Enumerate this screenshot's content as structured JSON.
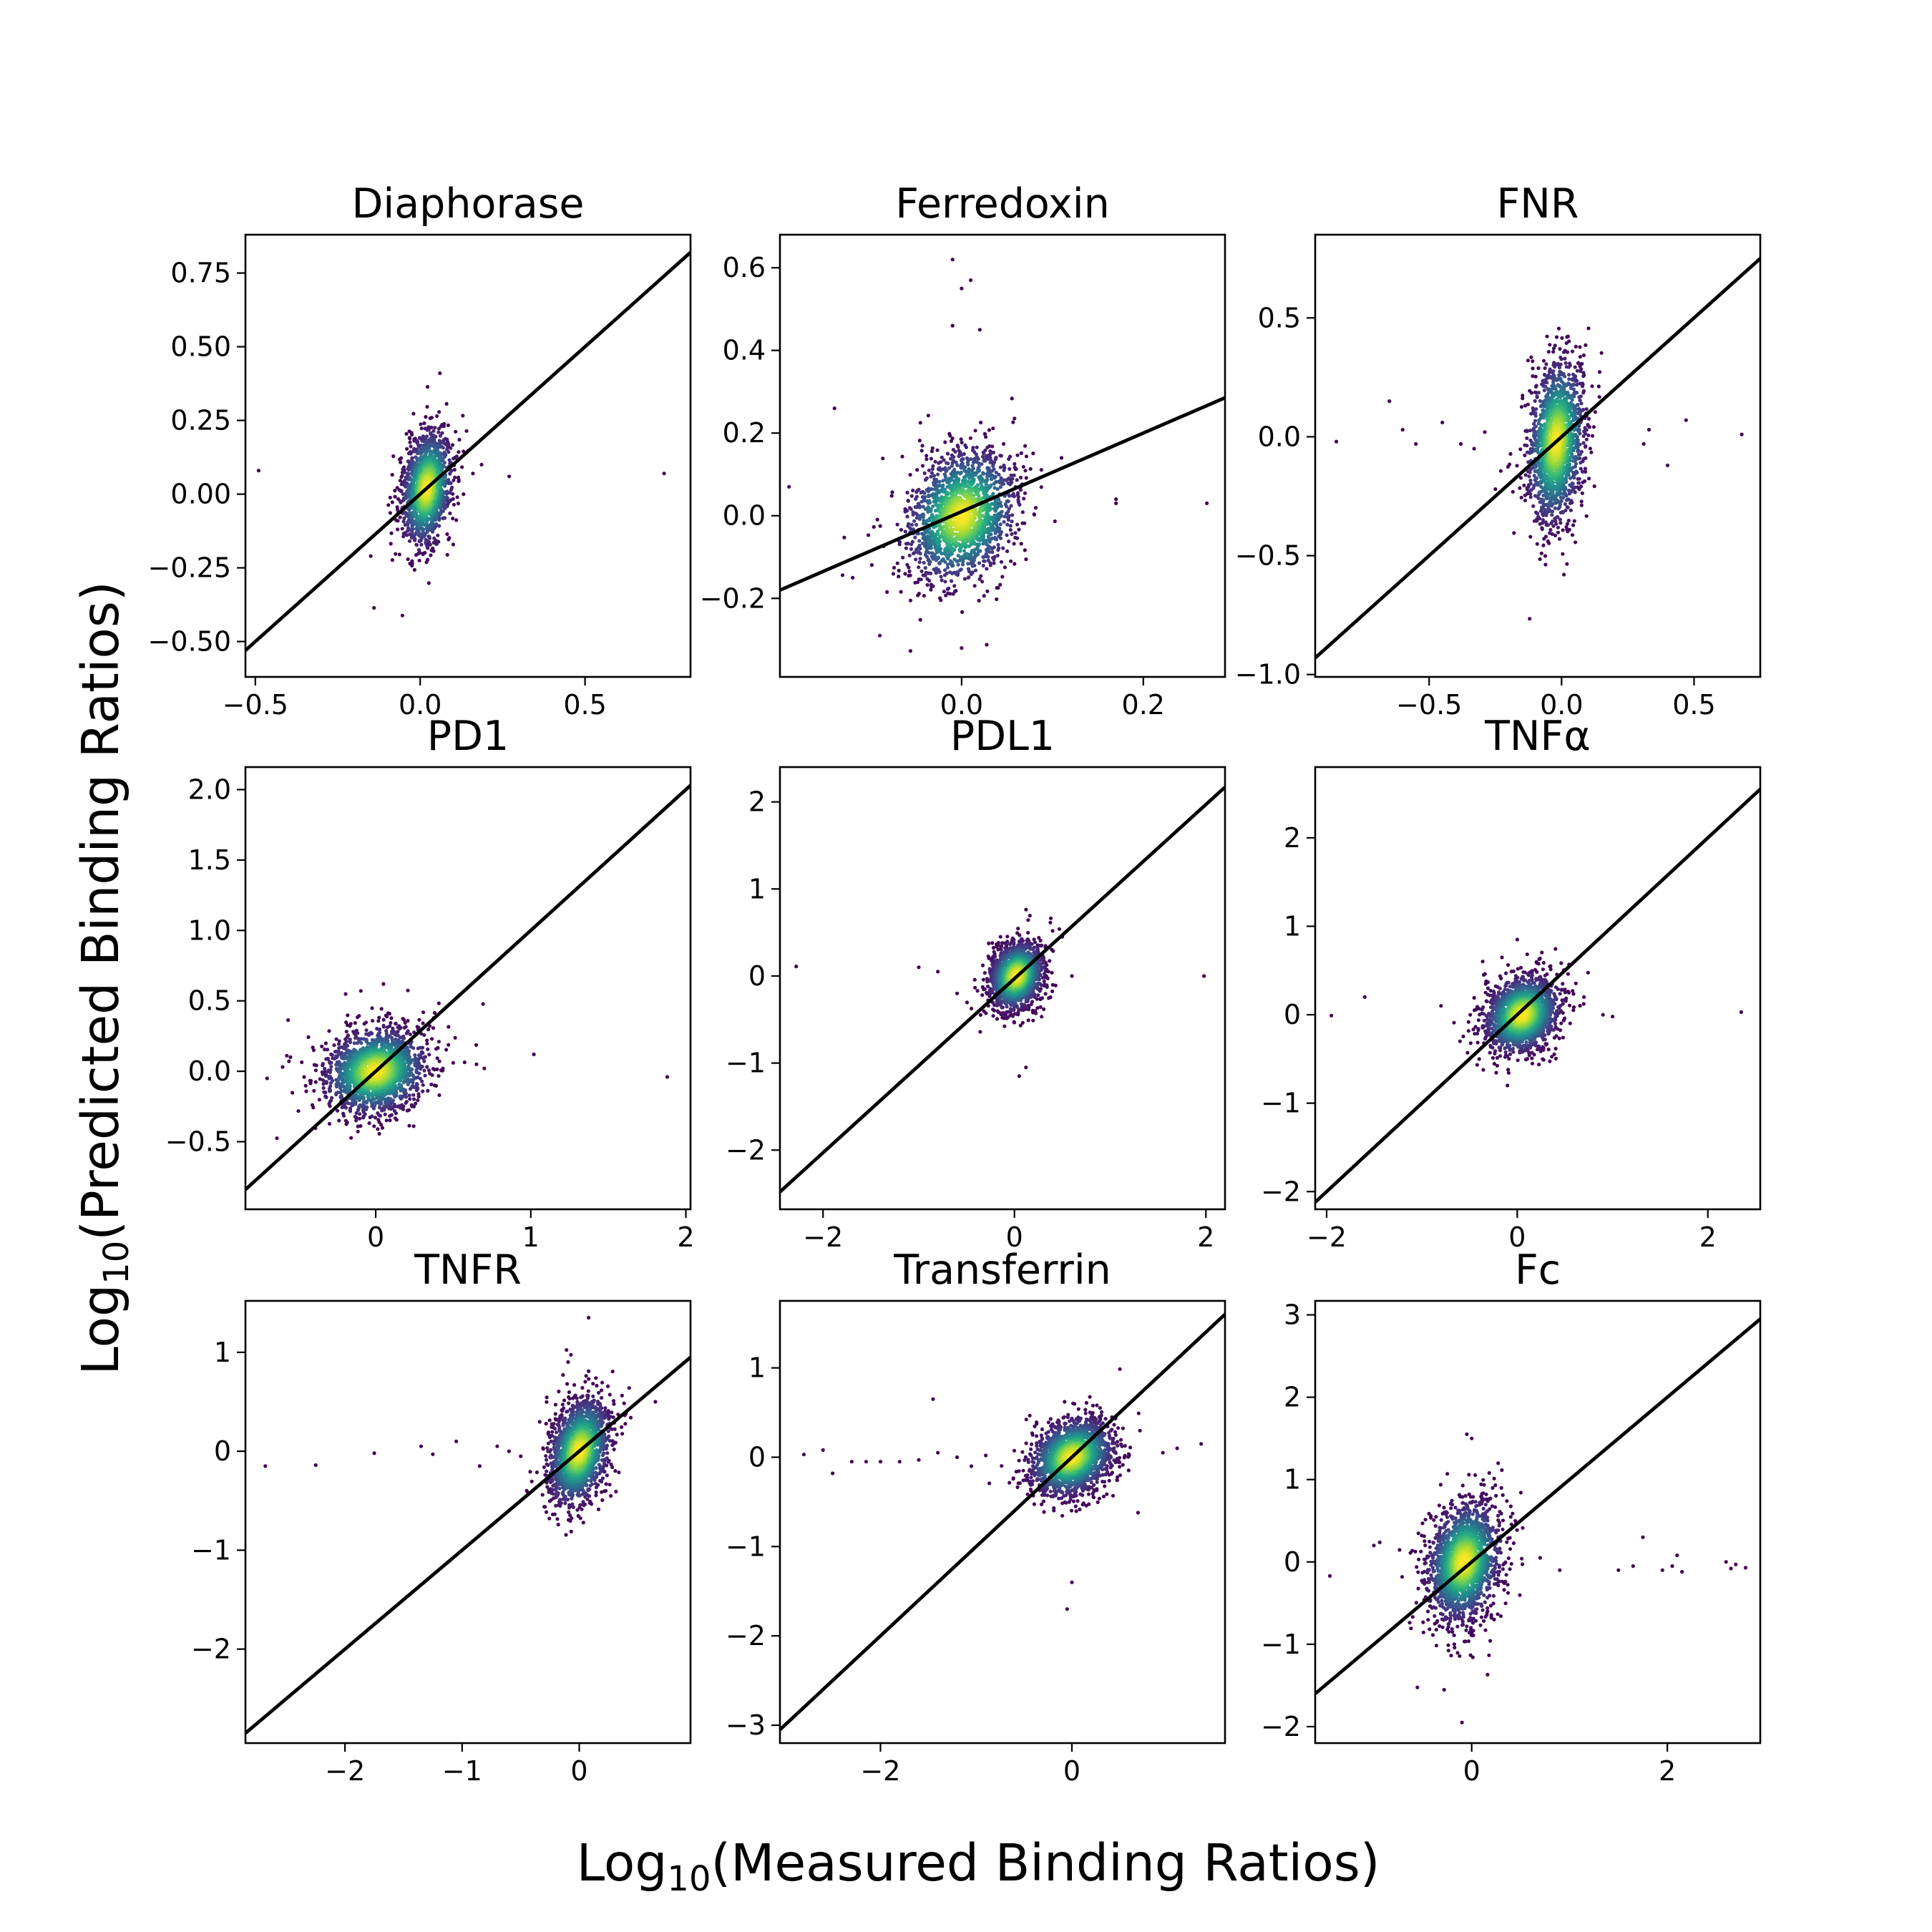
{
  "figure": {
    "xlabel_main": "Log",
    "xlabel_sub": "10",
    "xlabel_rest": "(Measured Binding Ratios)",
    "ylabel_main": "Log",
    "ylabel_sub": "10",
    "ylabel_rest": "(Predicted Binding Ratios)"
  },
  "chart_data": [
    {
      "type": "scatter",
      "title": "Diaphorase",
      "xlim": [
        -0.53,
        0.82
      ],
      "ylim": [
        -0.62,
        0.88
      ],
      "xticks": [
        -0.5,
        0,
        0.5
      ],
      "xtick_labels": [
        "−0.5",
        "0.0",
        "0.5"
      ],
      "yticks": [
        -0.5,
        -0.25,
        0,
        0.25,
        0.5,
        0.75
      ],
      "ytick_labels": [
        "−0.50",
        "−0.25",
        "0.00",
        "0.25",
        "0.50",
        "0.75"
      ],
      "fit_line": {
        "slope": 1.0,
        "intercept": 0.0
      },
      "cloud": {
        "cx": 0.02,
        "cy": 0.02,
        "sx": 0.035,
        "sy": 0.09,
        "rho": 0.25,
        "n": 1500
      },
      "outliers": [
        [
          -0.49,
          0.08
        ],
        [
          0.27,
          0.06
        ],
        [
          0.74,
          0.07
        ],
        [
          0.16,
          0.07
        ],
        [
          -0.15,
          -0.21
        ],
        [
          0.06,
          0.41
        ]
      ]
    },
    {
      "type": "scatter",
      "title": "Ferredoxin",
      "xlim": [
        -0.2,
        0.29
      ],
      "ylim": [
        -0.39,
        0.68
      ],
      "xticks": [
        0,
        0.2
      ],
      "xtick_labels": [
        "0.0",
        "0.2"
      ],
      "yticks": [
        -0.2,
        0,
        0.2,
        0.4,
        0.6
      ],
      "ytick_labels": [
        "−0.2",
        "0.0",
        "0.2",
        "0.4",
        "0.6"
      ],
      "fit_line": {
        "slope": 0.95,
        "intercept": 0.01
      },
      "cloud": {
        "cx": 0.0,
        "cy": 0.0,
        "sx": 0.028,
        "sy": 0.075,
        "rho": 0.2,
        "n": 1800
      },
      "outliers": [
        [
          -0.14,
          0.26
        ],
        [
          -0.19,
          0.07
        ],
        [
          0.17,
          0.03
        ],
        [
          0.17,
          0.04
        ],
        [
          0.27,
          0.03
        ],
        [
          -0.01,
          0.62
        ],
        [
          0.0,
          0.55
        ],
        [
          0.01,
          0.57
        ],
        [
          -0.01,
          0.46
        ],
        [
          0.02,
          0.45
        ],
        [
          -0.09,
          -0.29
        ],
        [
          0.0,
          -0.32
        ],
        [
          0.11,
          0.14
        ],
        [
          -0.12,
          -0.15
        ]
      ]
    },
    {
      "type": "scatter",
      "title": "FNR",
      "xlim": [
        -0.93,
        0.75
      ],
      "ylim": [
        -1.01,
        0.85
      ],
      "xticks": [
        -0.5,
        0,
        0.5
      ],
      "xtick_labels": [
        "−0.5",
        "0.0",
        "0.5"
      ],
      "yticks": [
        -1.0,
        -0.5,
        0,
        0.5
      ],
      "ytick_labels": [
        "−1.0",
        "−0.5",
        "0.0",
        "0.5"
      ],
      "fit_line": {
        "slope": 1.0,
        "intercept": 0.0
      },
      "cloud": {
        "cx": -0.02,
        "cy": -0.02,
        "sx": 0.05,
        "sy": 0.16,
        "rho": 0.2,
        "n": 1700
      },
      "outliers": [
        [
          -0.85,
          -0.02
        ],
        [
          -0.65,
          0.15
        ],
        [
          -0.6,
          0.03
        ],
        [
          -0.55,
          -0.03
        ],
        [
          -0.45,
          0.06
        ],
        [
          -0.38,
          -0.03
        ],
        [
          -0.33,
          -0.05
        ],
        [
          0.33,
          0.03
        ],
        [
          0.4,
          -0.12
        ],
        [
          0.47,
          0.07
        ],
        [
          0.68,
          0.01
        ],
        [
          0.31,
          -0.03
        ],
        [
          -0.29,
          0.02
        ],
        [
          -0.25,
          -0.22
        ]
      ]
    },
    {
      "type": "scatter",
      "title": "PD1",
      "xlim": [
        -0.84,
        2.03
      ],
      "ylim": [
        -0.98,
        2.16
      ],
      "xticks": [
        0,
        1,
        2
      ],
      "xtick_labels": [
        "0",
        "1",
        "2"
      ],
      "yticks": [
        -0.5,
        0,
        0.5,
        1.0,
        1.5,
        2.0
      ],
      "ytick_labels": [
        "−0.5",
        "0.0",
        "0.5",
        "1.0",
        "1.5",
        "2.0"
      ],
      "fit_line": {
        "slope": 1.0,
        "intercept": 0.0
      },
      "cloud": {
        "cx": 0.0,
        "cy": 0.0,
        "sx": 0.15,
        "sy": 0.14,
        "rho": 0.15,
        "n": 2000
      },
      "outliers": [
        [
          -0.7,
          -0.05
        ],
        [
          -0.6,
          0.03
        ],
        [
          -0.55,
          0.1
        ],
        [
          0.65,
          0.05
        ],
        [
          0.7,
          0.02
        ],
        [
          1.02,
          0.12
        ],
        [
          1.88,
          -0.04
        ],
        [
          -0.4,
          0.15
        ],
        [
          0.5,
          0.06
        ],
        [
          0.05,
          0.62
        ]
      ]
    },
    {
      "type": "scatter",
      "title": "PDL1",
      "xlim": [
        -2.45,
        2.2
      ],
      "ylim": [
        -2.68,
        2.4
      ],
      "xticks": [
        -2,
        0,
        2
      ],
      "xtick_labels": [
        "−2",
        "0",
        "2"
      ],
      "yticks": [
        -2,
        -1,
        0,
        1,
        2
      ],
      "ytick_labels": [
        "−2",
        "−1",
        "0",
        "1",
        "2"
      ],
      "fit_line": {
        "slope": 1.0,
        "intercept": -0.03
      },
      "cloud": {
        "cx": 0.02,
        "cy": 0.0,
        "sx": 0.13,
        "sy": 0.18,
        "rho": 0.2,
        "n": 1700
      },
      "outliers": [
        [
          -2.28,
          0.11
        ],
        [
          1.98,
          0.0
        ],
        [
          -1.0,
          0.1
        ],
        [
          -0.8,
          0.05
        ],
        [
          0.6,
          0.0
        ],
        [
          0.05,
          -1.15
        ],
        [
          0.12,
          -1.05
        ],
        [
          -0.6,
          -0.2
        ],
        [
          0.5,
          0.45
        ]
      ]
    },
    {
      "type": "scatter",
      "title": "TNFα",
      "xlim": [
        -2.12,
        2.55
      ],
      "ylim": [
        -2.2,
        2.8
      ],
      "xticks": [
        -2,
        0,
        2
      ],
      "xtick_labels": [
        "−2",
        "0",
        "2"
      ],
      "yticks": [
        -2,
        -1,
        0,
        1,
        2
      ],
      "ytick_labels": [
        "−2",
        "−1",
        "0",
        "1",
        "2"
      ],
      "fit_line": {
        "slope": 1.0,
        "intercept": 0.0
      },
      "cloud": {
        "cx": 0.05,
        "cy": 0.0,
        "sx": 0.18,
        "sy": 0.2,
        "rho": 0.2,
        "n": 1900
      },
      "outliers": [
        [
          -1.95,
          -0.01
        ],
        [
          -1.6,
          0.2
        ],
        [
          -0.8,
          0.1
        ],
        [
          0.9,
          0.0
        ],
        [
          1.0,
          -0.02
        ],
        [
          2.35,
          0.03
        ],
        [
          0.7,
          0.2
        ],
        [
          -0.6,
          -0.3
        ],
        [
          0.0,
          0.85
        ]
      ]
    },
    {
      "type": "scatter",
      "title": "TNFR",
      "xlim": [
        -2.85,
        0.95
      ],
      "ylim": [
        -2.95,
        1.52
      ],
      "xticks": [
        -2,
        -1,
        0
      ],
      "xtick_labels": [
        "−2",
        "−1",
        "0"
      ],
      "yticks": [
        -2,
        -1,
        0,
        1
      ],
      "ytick_labels": [
        "−2",
        "−1",
        "0",
        "1"
      ],
      "fit_line": {
        "slope": 1.0,
        "intercept": 0.0
      },
      "cloud": {
        "cx": 0.0,
        "cy": 0.0,
        "sx": 0.12,
        "sy": 0.25,
        "rho": 0.3,
        "n": 1900
      },
      "outliers": [
        [
          -2.68,
          -0.15
        ],
        [
          -2.25,
          -0.14
        ],
        [
          -1.75,
          -0.02
        ],
        [
          -1.35,
          0.05
        ],
        [
          -1.25,
          -0.03
        ],
        [
          -1.05,
          0.1
        ],
        [
          -0.85,
          -0.15
        ],
        [
          -0.7,
          0.05
        ],
        [
          -0.6,
          0.0
        ],
        [
          0.65,
          0.5
        ],
        [
          0.08,
          1.35
        ],
        [
          -0.5,
          -0.05
        ]
      ]
    },
    {
      "type": "scatter",
      "title": "Transferrin",
      "xlim": [
        -3.05,
        1.6
      ],
      "ylim": [
        -3.2,
        1.75
      ],
      "xticks": [
        -2,
        0
      ],
      "xtick_labels": [
        "−2",
        "0"
      ],
      "yticks": [
        -3,
        -2,
        -1,
        0,
        1
      ],
      "ytick_labels": [
        "−3",
        "−2",
        "−1",
        "0",
        "1"
      ],
      "fit_line": {
        "slope": 1.0,
        "intercept": 0.0
      },
      "cloud": {
        "cx": 0.0,
        "cy": 0.0,
        "sx": 0.2,
        "sy": 0.2,
        "rho": 0.25,
        "n": 2000
      },
      "outliers": [
        [
          -2.8,
          0.03
        ],
        [
          -2.6,
          0.08
        ],
        [
          -2.5,
          -0.18
        ],
        [
          -2.3,
          -0.05
        ],
        [
          -2.15,
          -0.05
        ],
        [
          -2.0,
          -0.05
        ],
        [
          -1.8,
          -0.05
        ],
        [
          -1.6,
          -0.03
        ],
        [
          -1.4,
          0.05
        ],
        [
          -1.2,
          0.0
        ],
        [
          -1.05,
          -0.1
        ],
        [
          -0.9,
          0.02
        ],
        [
          1.35,
          0.15
        ],
        [
          1.1,
          0.1
        ],
        [
          -1.45,
          0.65
        ],
        [
          -0.05,
          -1.7
        ],
        [
          0.0,
          -1.4
        ],
        [
          0.95,
          0.05
        ]
      ]
    },
    {
      "type": "scatter",
      "title": "Fc",
      "xlim": [
        -1.6,
        2.95
      ],
      "ylim": [
        -2.2,
        3.17
      ],
      "xticks": [
        0,
        2
      ],
      "xtick_labels": [
        "0",
        "2"
      ],
      "yticks": [
        -2,
        -1,
        0,
        1,
        2,
        3
      ],
      "ytick_labels": [
        "−2",
        "−1",
        "0",
        "1",
        "2",
        "3"
      ],
      "fit_line": {
        "slope": 1.0,
        "intercept": 0.0
      },
      "cloud": {
        "cx": -0.08,
        "cy": 0.0,
        "sx": 0.17,
        "sy": 0.33,
        "rho": 0.2,
        "n": 2100
      },
      "outliers": [
        [
          -1.45,
          -0.17
        ],
        [
          1.5,
          -0.1
        ],
        [
          1.65,
          -0.05
        ],
        [
          1.75,
          0.3
        ],
        [
          1.95,
          -0.1
        ],
        [
          2.05,
          -0.05
        ],
        [
          2.1,
          0.08
        ],
        [
          2.15,
          -0.12
        ],
        [
          2.6,
          0.0
        ],
        [
          2.65,
          -0.08
        ],
        [
          2.7,
          -0.03
        ],
        [
          2.8,
          -0.07
        ],
        [
          0.7,
          0.05
        ],
        [
          0.9,
          -0.1
        ],
        [
          -0.05,
          1.55
        ],
        [
          0.0,
          1.5
        ],
        [
          -0.1,
          -1.95
        ],
        [
          -1.0,
          0.2
        ]
      ]
    }
  ]
}
